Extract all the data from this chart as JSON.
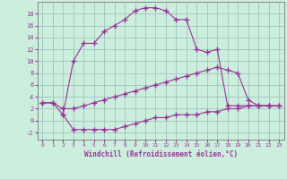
{
  "xlabel": "Windchill (Refroidissement éolien,°C)",
  "bg_color": "#cceedd",
  "line_color": "#993399",
  "grid_color": "#99bbbb",
  "xlim": [
    -0.5,
    23.5
  ],
  "ylim": [
    -3.2,
    20.0
  ],
  "xticks": [
    0,
    1,
    2,
    3,
    4,
    5,
    6,
    7,
    8,
    9,
    10,
    11,
    12,
    13,
    14,
    15,
    16,
    17,
    18,
    19,
    20,
    21,
    22,
    23
  ],
  "yticks": [
    -2,
    0,
    2,
    4,
    6,
    8,
    10,
    12,
    14,
    16,
    18
  ],
  "line1_x": [
    0,
    1,
    2,
    3,
    4,
    5,
    6,
    7,
    8,
    9,
    10,
    11,
    12,
    13,
    14,
    15,
    16,
    17,
    18,
    19,
    20,
    21,
    22
  ],
  "line1_y": [
    3,
    3,
    1,
    10,
    13,
    13,
    15,
    16,
    17,
    18.5,
    19,
    19,
    18.5,
    17,
    17,
    12,
    11.5,
    12,
    2.5,
    2.5,
    2.5,
    2.5,
    2.5
  ],
  "line2_x": [
    0,
    1,
    2,
    3,
    4,
    5,
    6,
    7,
    8,
    9,
    10,
    11,
    12,
    13,
    14,
    15,
    16,
    17,
    18,
    19,
    20,
    21,
    22,
    23
  ],
  "line2_y": [
    3,
    3,
    2,
    2,
    2.5,
    3,
    3.5,
    4,
    4.5,
    5,
    5.5,
    6,
    6.5,
    7,
    7.5,
    8,
    8.5,
    9,
    8.5,
    8,
    3.5,
    2.5,
    2.5,
    2.5
  ],
  "line3_x": [
    2,
    3,
    4,
    5,
    6,
    7,
    8,
    9,
    10,
    11,
    12,
    13,
    14,
    15,
    16,
    17,
    18,
    19,
    20,
    21,
    22,
    23
  ],
  "line3_y": [
    1,
    -1.5,
    -1.5,
    -1.5,
    -1.5,
    -1.5,
    -1,
    -0.5,
    0,
    0.5,
    0.5,
    1,
    1,
    1,
    1.5,
    1.5,
    2,
    2,
    2.5,
    2.5,
    2.5,
    2.5
  ]
}
